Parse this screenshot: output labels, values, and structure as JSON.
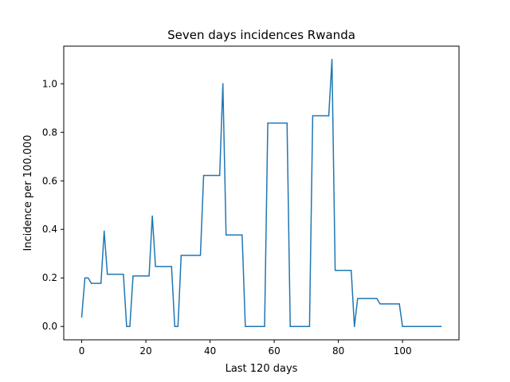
{
  "chart_data": {
    "type": "line",
    "title": "Seven days incidences Rwanda",
    "xlabel": "Last 120 days",
    "ylabel": "Incidence per 100.000",
    "xlim": [
      -5.6,
      117.6
    ],
    "ylim": [
      -0.055,
      1.155
    ],
    "xticks": [
      0,
      20,
      40,
      60,
      80,
      100
    ],
    "yticks": [
      0.0,
      0.2,
      0.4,
      0.6,
      0.8,
      1.0
    ],
    "xtick_labels": [
      "0",
      "20",
      "40",
      "60",
      "80",
      "100"
    ],
    "ytick_labels": [
      "0.0",
      "0.2",
      "0.4",
      "0.6",
      "0.8",
      "1.0"
    ],
    "grid": false,
    "line_color": "#1f77b4",
    "series": [
      {
        "x": [
          0,
          1,
          2,
          3,
          6,
          7,
          8,
          13,
          14,
          15,
          16,
          21,
          22,
          23,
          28,
          29,
          30,
          31,
          37,
          38,
          43,
          44,
          45,
          50,
          51,
          57,
          58,
          64,
          65,
          71,
          72,
          77,
          78,
          79,
          84,
          85,
          86,
          92,
          93,
          99,
          100,
          112
        ],
        "y": [
          0.04,
          0.2,
          0.2,
          0.178,
          0.178,
          0.393,
          0.215,
          0.215,
          0.0,
          0.0,
          0.208,
          0.208,
          0.455,
          0.247,
          0.247,
          0.0,
          0.0,
          0.293,
          0.293,
          0.622,
          0.622,
          1.0,
          0.377,
          0.377,
          0.0,
          0.0,
          0.838,
          0.838,
          0.0,
          0.0,
          0.868,
          0.868,
          1.1,
          0.231,
          0.231,
          0.0,
          0.115,
          0.115,
          0.093,
          0.093,
          0.0,
          0.0
        ]
      }
    ]
  }
}
